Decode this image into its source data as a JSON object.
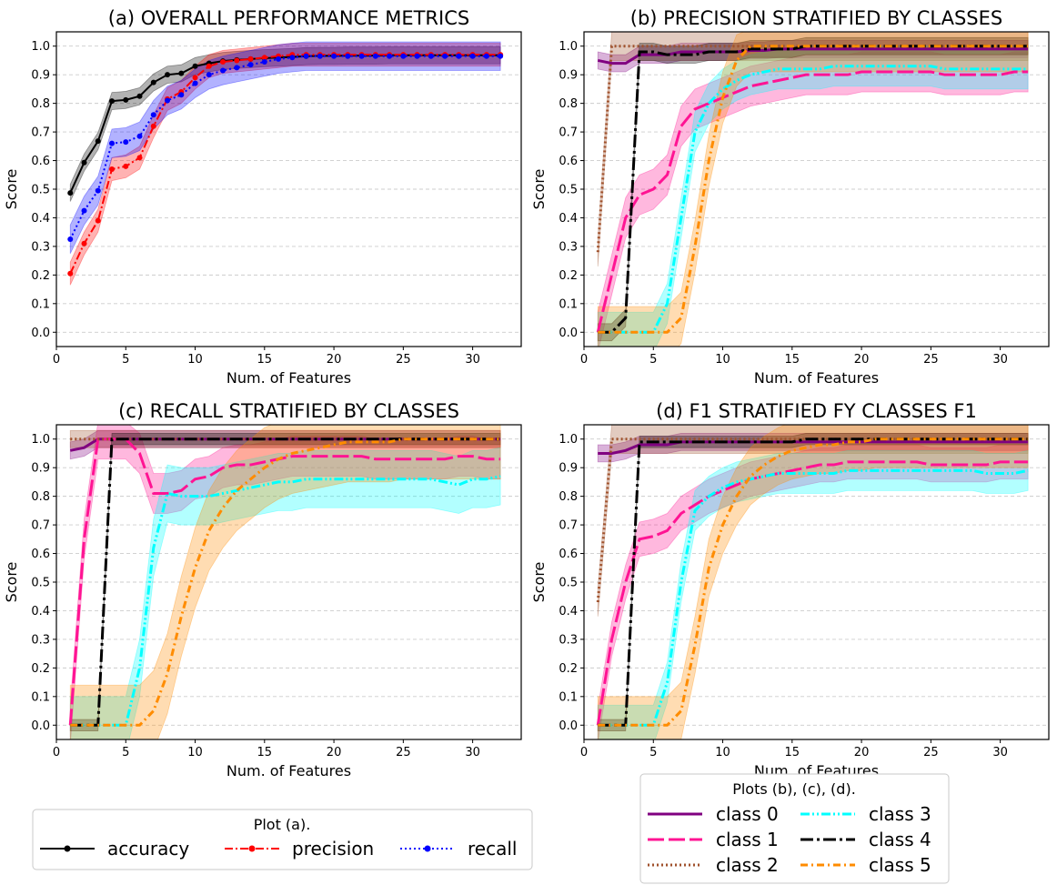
{
  "chart_data": [
    {
      "id": "a",
      "type": "line",
      "title": "(a) OVERALL PERFORMANCE METRICS",
      "xlabel": "Num. of Features",
      "ylabel": "Score",
      "xlim": [
        0,
        33.5
      ],
      "ylim": [
        -0.05,
        1.05
      ],
      "xticks": [
        0,
        5,
        10,
        15,
        20,
        25,
        30
      ],
      "yticks": [
        0.0,
        0.1,
        0.2,
        0.3,
        0.4,
        0.5,
        0.6,
        0.7,
        0.8,
        0.9,
        1.0
      ],
      "grid": "horizontal dashed",
      "series": [
        {
          "name": "accuracy",
          "color": "#000000",
          "dash": "",
          "marker": true,
          "band": 0.03,
          "values": [
            0.487,
            0.593,
            0.668,
            0.808,
            0.812,
            0.825,
            0.873,
            0.9,
            0.905,
            0.93,
            0.94,
            0.948,
            0.952,
            0.955,
            0.958,
            0.96,
            0.962,
            0.965,
            0.966,
            0.966,
            0.967,
            0.967,
            0.967,
            0.968,
            0.968,
            0.968,
            0.968,
            0.968,
            0.968,
            0.968,
            0.968,
            0.968
          ]
        },
        {
          "name": "precision",
          "color": "#ff0000",
          "dash": "9,3,2,3",
          "marker": true,
          "band": 0.04,
          "values": [
            0.205,
            0.31,
            0.39,
            0.57,
            0.58,
            0.61,
            0.72,
            0.815,
            0.84,
            0.89,
            0.93,
            0.945,
            0.95,
            0.955,
            0.96,
            0.965,
            0.97,
            0.97,
            0.97,
            0.97,
            0.97,
            0.97,
            0.97,
            0.97,
            0.97,
            0.97,
            0.97,
            0.97,
            0.97,
            0.97,
            0.97,
            0.97
          ]
        },
        {
          "name": "recall",
          "color": "#0000ff",
          "dash": "2,3",
          "marker": true,
          "band": 0.05,
          "values": [
            0.325,
            0.425,
            0.495,
            0.66,
            0.665,
            0.685,
            0.76,
            0.81,
            0.83,
            0.87,
            0.9,
            0.915,
            0.925,
            0.935,
            0.945,
            0.955,
            0.96,
            0.965,
            0.965,
            0.965,
            0.965,
            0.965,
            0.965,
            0.965,
            0.965,
            0.965,
            0.965,
            0.965,
            0.965,
            0.965,
            0.965,
            0.965
          ]
        }
      ]
    },
    {
      "id": "b",
      "type": "line",
      "title": "(b) PRECISION STRATIFIED BY CLASSES",
      "xlabel": "Num. of Features",
      "ylabel": "Score",
      "xlim": [
        0,
        33.5
      ],
      "ylim": [
        -0.05,
        1.05
      ],
      "xticks": [
        0,
        5,
        10,
        15,
        20,
        25,
        30
      ],
      "yticks": [
        0.0,
        0.1,
        0.2,
        0.3,
        0.4,
        0.5,
        0.6,
        0.7,
        0.8,
        0.9,
        1.0
      ],
      "grid": "horizontal dashed",
      "series": [
        {
          "name": "class 0",
          "color": "#800080",
          "dash": "",
          "band": 0.03,
          "values": [
            0.95,
            0.94,
            0.94,
            0.97,
            0.97,
            0.97,
            0.98,
            0.98,
            0.98,
            0.98,
            0.98,
            0.985,
            0.985,
            0.99,
            0.99,
            0.99,
            0.99,
            0.99,
            0.99,
            0.99,
            0.99,
            0.99,
            0.99,
            0.99,
            0.99,
            0.99,
            0.99,
            0.99,
            0.99,
            0.99,
            0.99,
            0.99
          ]
        },
        {
          "name": "class 1",
          "color": "#ff1493",
          "dash": "18,5",
          "band": 0.07,
          "values": [
            0.0,
            0.2,
            0.4,
            0.48,
            0.5,
            0.55,
            0.72,
            0.78,
            0.8,
            0.82,
            0.84,
            0.86,
            0.87,
            0.88,
            0.89,
            0.9,
            0.9,
            0.9,
            0.9,
            0.91,
            0.91,
            0.91,
            0.91,
            0.91,
            0.91,
            0.9,
            0.9,
            0.9,
            0.9,
            0.9,
            0.91,
            0.91
          ]
        },
        {
          "name": "class 2",
          "color": "#a0522d",
          "dash": "2,3",
          "band": 0.05,
          "values": [
            0.28,
            1.0,
            1.0,
            1.0,
            1.0,
            1.0,
            1.0,
            1.0,
            1.0,
            1.0,
            1.0,
            1.0,
            1.0,
            1.0,
            1.0,
            1.0,
            1.0,
            1.0,
            1.0,
            1.0,
            1.0,
            1.0,
            1.0,
            1.0,
            1.0,
            1.0,
            1.0,
            1.0,
            1.0,
            1.0,
            1.0,
            1.0
          ]
        },
        {
          "name": "class 3",
          "color": "#00ffff",
          "dash": "10,3,2,3,2,3",
          "band": 0.07,
          "values": [
            0.0,
            0.0,
            0.0,
            0.0,
            0.0,
            0.1,
            0.4,
            0.7,
            0.8,
            0.85,
            0.88,
            0.9,
            0.91,
            0.92,
            0.92,
            0.92,
            0.92,
            0.93,
            0.93,
            0.93,
            0.93,
            0.93,
            0.93,
            0.93,
            0.93,
            0.92,
            0.92,
            0.92,
            0.92,
            0.92,
            0.92,
            0.92
          ]
        },
        {
          "name": "class 4",
          "color": "#000000",
          "dash": "14,4,3,4",
          "band": 0.03,
          "values": [
            0.0,
            0.0,
            0.05,
            0.98,
            0.98,
            0.97,
            0.97,
            0.97,
            0.98,
            0.98,
            0.98,
            0.99,
            0.99,
            0.99,
            0.99,
            1.0,
            1.0,
            1.0,
            1.0,
            1.0,
            1.0,
            1.0,
            1.0,
            1.0,
            1.0,
            1.0,
            1.0,
            1.0,
            1.0,
            1.0,
            1.0,
            1.0
          ]
        },
        {
          "name": "class 5",
          "color": "#ff8c00",
          "dash": "8,4,2,4",
          "band": 0.09,
          "values": [
            0.0,
            0.0,
            0.0,
            0.0,
            0.0,
            0.0,
            0.05,
            0.3,
            0.6,
            0.82,
            0.95,
            1.0,
            1.0,
            1.0,
            1.0,
            1.0,
            1.0,
            1.0,
            1.0,
            1.0,
            1.0,
            1.0,
            1.0,
            1.0,
            1.0,
            1.0,
            1.0,
            1.0,
            1.0,
            1.0,
            1.0,
            1.0
          ]
        }
      ]
    },
    {
      "id": "c",
      "type": "line",
      "title": "(c) RECALL STRATIFIED BY CLASSES",
      "xlabel": "Num. of Features",
      "ylabel": "Score",
      "xlim": [
        0,
        33.5
      ],
      "ylim": [
        -0.05,
        1.05
      ],
      "xticks": [
        0,
        5,
        10,
        15,
        20,
        25,
        30
      ],
      "yticks": [
        0.0,
        0.1,
        0.2,
        0.3,
        0.4,
        0.5,
        0.6,
        0.7,
        0.8,
        0.9,
        1.0
      ],
      "grid": "horizontal dashed",
      "series": [
        {
          "name": "class 0",
          "color": "#800080",
          "dash": "",
          "band": 0.03,
          "values": [
            0.96,
            0.97,
            1.0,
            1.0,
            1.0,
            1.0,
            1.0,
            1.0,
            1.0,
            1.0,
            1.0,
            1.0,
            1.0,
            1.0,
            1.0,
            1.0,
            1.0,
            1.0,
            1.0,
            1.0,
            1.0,
            1.0,
            1.0,
            1.0,
            1.0,
            1.0,
            1.0,
            1.0,
            1.0,
            1.0,
            1.0,
            1.0
          ]
        },
        {
          "name": "class 1",
          "color": "#ff1493",
          "dash": "18,5",
          "band": 0.07,
          "values": [
            0.0,
            0.65,
            1.0,
            1.0,
            1.0,
            0.95,
            0.81,
            0.81,
            0.82,
            0.86,
            0.87,
            0.9,
            0.91,
            0.91,
            0.92,
            0.93,
            0.94,
            0.94,
            0.94,
            0.94,
            0.94,
            0.94,
            0.93,
            0.93,
            0.93,
            0.93,
            0.93,
            0.93,
            0.94,
            0.94,
            0.93,
            0.93
          ]
        },
        {
          "name": "class 2",
          "color": "#a0522d",
          "dash": "2,3",
          "band": 0.03,
          "values": [
            1.0,
            1.0,
            1.0,
            1.0,
            1.0,
            1.0,
            1.0,
            1.0,
            1.0,
            1.0,
            1.0,
            1.0,
            1.0,
            1.0,
            1.0,
            1.0,
            1.0,
            1.0,
            1.0,
            1.0,
            1.0,
            1.0,
            1.0,
            1.0,
            1.0,
            1.0,
            1.0,
            1.0,
            1.0,
            1.0,
            1.0,
            1.0
          ]
        },
        {
          "name": "class 3",
          "color": "#00ffff",
          "dash": "10,3,2,3,2,3",
          "band": 0.1,
          "values": [
            0.0,
            0.0,
            0.0,
            0.0,
            0.0,
            0.2,
            0.62,
            0.81,
            0.8,
            0.8,
            0.8,
            0.81,
            0.82,
            0.83,
            0.84,
            0.85,
            0.85,
            0.86,
            0.86,
            0.86,
            0.86,
            0.86,
            0.86,
            0.86,
            0.86,
            0.86,
            0.86,
            0.85,
            0.84,
            0.86,
            0.86,
            0.87
          ]
        },
        {
          "name": "class 4",
          "color": "#000000",
          "dash": "14,4,3,4",
          "band": 0.02,
          "values": [
            0.0,
            0.0,
            0.0,
            1.0,
            1.0,
            1.0,
            1.0,
            1.0,
            1.0,
            1.0,
            1.0,
            1.0,
            1.0,
            1.0,
            1.0,
            1.0,
            1.0,
            1.0,
            1.0,
            1.0,
            1.0,
            1.0,
            1.0,
            1.0,
            1.0,
            1.0,
            1.0,
            1.0,
            1.0,
            1.0,
            1.0,
            1.0
          ]
        },
        {
          "name": "class 5",
          "color": "#ff8c00",
          "dash": "8,4,2,4",
          "band": 0.14,
          "values": [
            0.0,
            0.0,
            0.0,
            0.0,
            0.0,
            0.0,
            0.05,
            0.18,
            0.38,
            0.55,
            0.68,
            0.76,
            0.82,
            0.86,
            0.9,
            0.93,
            0.95,
            0.96,
            0.97,
            0.98,
            0.99,
            0.99,
            0.99,
            0.99,
            1.0,
            1.0,
            1.0,
            1.0,
            1.0,
            1.0,
            1.0,
            1.0
          ]
        }
      ]
    },
    {
      "id": "d",
      "type": "line",
      "title": "(d) F1 STRATIFIED FY CLASSES F1",
      "xlabel": "Num. of Features",
      "ylabel": "Score",
      "xlim": [
        0,
        33.5
      ],
      "ylim": [
        -0.05,
        1.05
      ],
      "xticks": [
        0,
        5,
        10,
        15,
        20,
        25,
        30
      ],
      "yticks": [
        0.0,
        0.1,
        0.2,
        0.3,
        0.4,
        0.5,
        0.6,
        0.7,
        0.8,
        0.9,
        1.0
      ],
      "grid": "horizontal dashed",
      "series": [
        {
          "name": "class 0",
          "color": "#800080",
          "dash": "",
          "band": 0.03,
          "values": [
            0.95,
            0.95,
            0.96,
            0.98,
            0.98,
            0.98,
            0.99,
            0.99,
            0.99,
            0.99,
            0.99,
            0.99,
            0.99,
            0.99,
            0.99,
            0.99,
            0.99,
            0.99,
            0.99,
            0.99,
            0.99,
            0.99,
            0.99,
            0.99,
            0.99,
            0.99,
            0.99,
            0.99,
            0.99,
            0.99,
            0.99,
            0.99
          ]
        },
        {
          "name": "class 1",
          "color": "#ff1493",
          "dash": "18,5",
          "band": 0.06,
          "values": [
            0.0,
            0.3,
            0.5,
            0.65,
            0.66,
            0.68,
            0.74,
            0.77,
            0.8,
            0.82,
            0.84,
            0.86,
            0.87,
            0.88,
            0.89,
            0.9,
            0.91,
            0.91,
            0.92,
            0.92,
            0.92,
            0.92,
            0.92,
            0.92,
            0.91,
            0.91,
            0.91,
            0.91,
            0.91,
            0.92,
            0.92,
            0.92
          ]
        },
        {
          "name": "class 2",
          "color": "#a0522d",
          "dash": "2,3",
          "band": 0.05,
          "values": [
            0.43,
            1.0,
            1.0,
            1.0,
            1.0,
            1.0,
            1.0,
            1.0,
            1.0,
            1.0,
            1.0,
            1.0,
            1.0,
            1.0,
            1.0,
            1.0,
            1.0,
            1.0,
            1.0,
            1.0,
            1.0,
            1.0,
            1.0,
            1.0,
            1.0,
            1.0,
            1.0,
            1.0,
            1.0,
            1.0,
            1.0,
            1.0
          ]
        },
        {
          "name": "class 3",
          "color": "#00ffff",
          "dash": "10,3,2,3,2,3",
          "band": 0.07,
          "values": [
            0.0,
            0.0,
            0.0,
            0.0,
            0.0,
            0.15,
            0.5,
            0.75,
            0.8,
            0.83,
            0.85,
            0.86,
            0.87,
            0.88,
            0.88,
            0.88,
            0.88,
            0.88,
            0.89,
            0.89,
            0.89,
            0.89,
            0.89,
            0.89,
            0.89,
            0.89,
            0.89,
            0.89,
            0.88,
            0.88,
            0.88,
            0.89
          ]
        },
        {
          "name": "class 4",
          "color": "#000000",
          "dash": "14,4,3,4",
          "band": 0.02,
          "values": [
            0.0,
            0.0,
            0.0,
            0.99,
            0.99,
            0.99,
            0.99,
            0.99,
            0.99,
            0.99,
            0.99,
            0.99,
            0.99,
            0.99,
            0.99,
            1.0,
            1.0,
            1.0,
            1.0,
            1.0,
            1.0,
            1.0,
            1.0,
            1.0,
            1.0,
            1.0,
            1.0,
            1.0,
            1.0,
            1.0,
            1.0,
            1.0
          ]
        },
        {
          "name": "class 5",
          "color": "#ff8c00",
          "dash": "8,4,2,4",
          "band": 0.1,
          "values": [
            0.0,
            0.0,
            0.0,
            0.0,
            0.0,
            0.0,
            0.05,
            0.28,
            0.55,
            0.7,
            0.8,
            0.87,
            0.91,
            0.94,
            0.96,
            0.97,
            0.98,
            0.98,
            0.99,
            0.99,
            1.0,
            1.0,
            1.0,
            1.0,
            1.0,
            1.0,
            1.0,
            1.0,
            1.0,
            1.0,
            1.0,
            1.0
          ]
        }
      ]
    }
  ],
  "legend_a": {
    "title": "Plot (a).",
    "placement": "bottom-left",
    "entries": [
      {
        "label": "accuracy",
        "color": "#000000",
        "dash": "",
        "marker": true
      },
      {
        "label": "precision",
        "color": "#ff0000",
        "dash": "9,3,2,3",
        "marker": true
      },
      {
        "label": "recall",
        "color": "#0000ff",
        "dash": "2,3",
        "marker": true
      }
    ]
  },
  "legend_bcd": {
    "title": "Plots (b), (c), (d).",
    "placement": "bottom-right",
    "entries": [
      {
        "label": "class 0",
        "color": "#800080",
        "dash": ""
      },
      {
        "label": "class 1",
        "color": "#ff1493",
        "dash": "18,5"
      },
      {
        "label": "class 2",
        "color": "#a0522d",
        "dash": "2,3"
      },
      {
        "label": "class 3",
        "color": "#00ffff",
        "dash": "10,3,2,3,2,3"
      },
      {
        "label": "class 4",
        "color": "#000000",
        "dash": "14,4,3,4"
      },
      {
        "label": "class 5",
        "color": "#ff8c00",
        "dash": "8,4,2,4"
      }
    ]
  }
}
